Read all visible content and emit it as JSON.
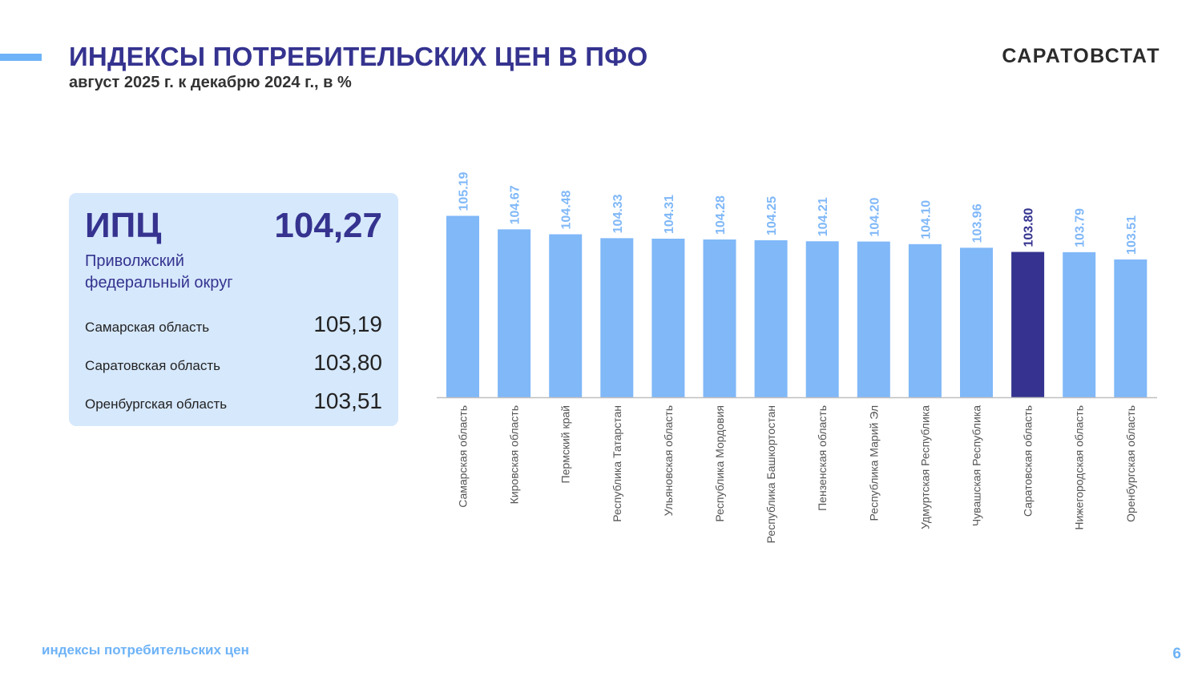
{
  "header": {
    "title": "ИНДЕКСЫ ПОТРЕБИТЕЛЬСКИХ ЦЕН В ПФО",
    "subtitle": "август 2025 г. к декабрю 2024 г., в %",
    "brand": "САРАТОВСТАТ"
  },
  "summary": {
    "ipc_label": "ИПЦ",
    "ipc_value": "104,27",
    "district_line1": "Приволжский",
    "district_line2": "федеральный округ",
    "rows": [
      {
        "name": "Самарская область",
        "value": "105,19"
      },
      {
        "name": "Саратовская область",
        "value": "103,80"
      },
      {
        "name": "Оренбургская область",
        "value": "103,51"
      }
    ]
  },
  "colors": {
    "accent": "#6eb3f7",
    "bar": "#80b8f8",
    "bar_highlight": "#35338f",
    "title": "#35338f"
  },
  "chart_data": {
    "type": "bar",
    "categories": [
      "Самарская область",
      "Кировская область",
      "Пермский край",
      "Республика Татарстан",
      "Ульяновская область",
      "Республика Мордовия",
      "Республика Башкортостан",
      "Пензенская область",
      "Республика Марий Эл",
      "Удмуртская Республика",
      "Чувашская Республика",
      "Саратовская область",
      "Нижегородская область",
      "Оренбургская область"
    ],
    "values": [
      105.19,
      104.67,
      104.48,
      104.33,
      104.31,
      104.28,
      104.25,
      104.21,
      104.2,
      104.1,
      103.96,
      103.8,
      103.79,
      103.51
    ],
    "data_labels": [
      "105.19",
      "104.67",
      "104.48",
      "104.33",
      "104.31",
      "104.28",
      "104.25",
      "104.21",
      "104.20",
      "104.10",
      "103.96",
      "103.80",
      "103.79",
      "103.51"
    ],
    "highlight": "Саратовская область",
    "ylim": [
      98.2,
      106.1
    ],
    "grid": false,
    "legend": "none"
  },
  "footer": {
    "label": "индексы потребительских цен",
    "page": "6"
  }
}
